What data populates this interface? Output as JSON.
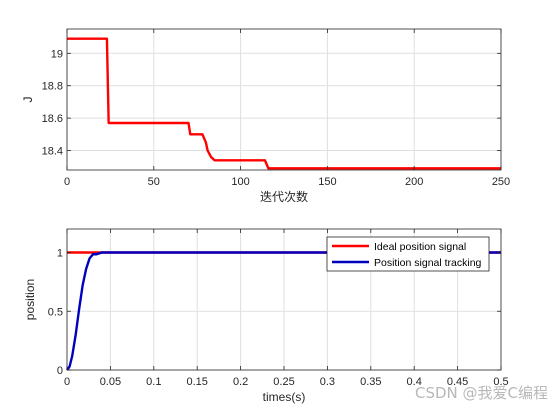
{
  "chart_data": [
    {
      "type": "line",
      "title": "",
      "xlabel": "迭代次数",
      "ylabel": "J",
      "xlim": [
        0,
        250
      ],
      "ylim": [
        18.28,
        19.15
      ],
      "xticks": [
        "0",
        "50",
        "100",
        "150",
        "200",
        "250"
      ],
      "yticks": [
        "18.4",
        "18.6",
        "18.8",
        "19"
      ],
      "grid": true,
      "series": [
        {
          "color": "#ff0000",
          "x": [
            0,
            23,
            24,
            70,
            71,
            78,
            80,
            81,
            83,
            85,
            114,
            116,
            250
          ],
          "y": [
            19.09,
            19.09,
            18.57,
            18.57,
            18.5,
            18.5,
            18.45,
            18.4,
            18.36,
            18.34,
            18.34,
            18.29,
            18.29
          ]
        }
      ]
    },
    {
      "type": "line",
      "title": "",
      "xlabel": "times(s)",
      "ylabel": "position",
      "xlim": [
        0,
        0.5
      ],
      "ylim": [
        0,
        1.2
      ],
      "xticks": [
        "0",
        "0.05",
        "0.1",
        "0.15",
        "0.2",
        "0.25",
        "0.3",
        "0.35",
        "0.4",
        "0.45",
        "0.5"
      ],
      "yticks": [
        "0",
        "0.5",
        "1"
      ],
      "grid": true,
      "legend_position": "top-right",
      "series": [
        {
          "name": "Ideal position signal",
          "color": "#ff0000",
          "x": [
            0,
            0.5
          ],
          "y": [
            1,
            1
          ]
        },
        {
          "name": "Position signal tracking",
          "color": "#0000bf",
          "x": [
            0,
            0.003,
            0.006,
            0.01,
            0.014,
            0.018,
            0.022,
            0.026,
            0.03,
            0.034,
            0.04,
            0.05,
            0.5
          ],
          "y": [
            0,
            0.03,
            0.12,
            0.3,
            0.52,
            0.72,
            0.86,
            0.95,
            0.985,
            0.985,
            1.0,
            1.0,
            1.0
          ]
        }
      ]
    }
  ],
  "watermark": "CSDN @我爱C编程"
}
